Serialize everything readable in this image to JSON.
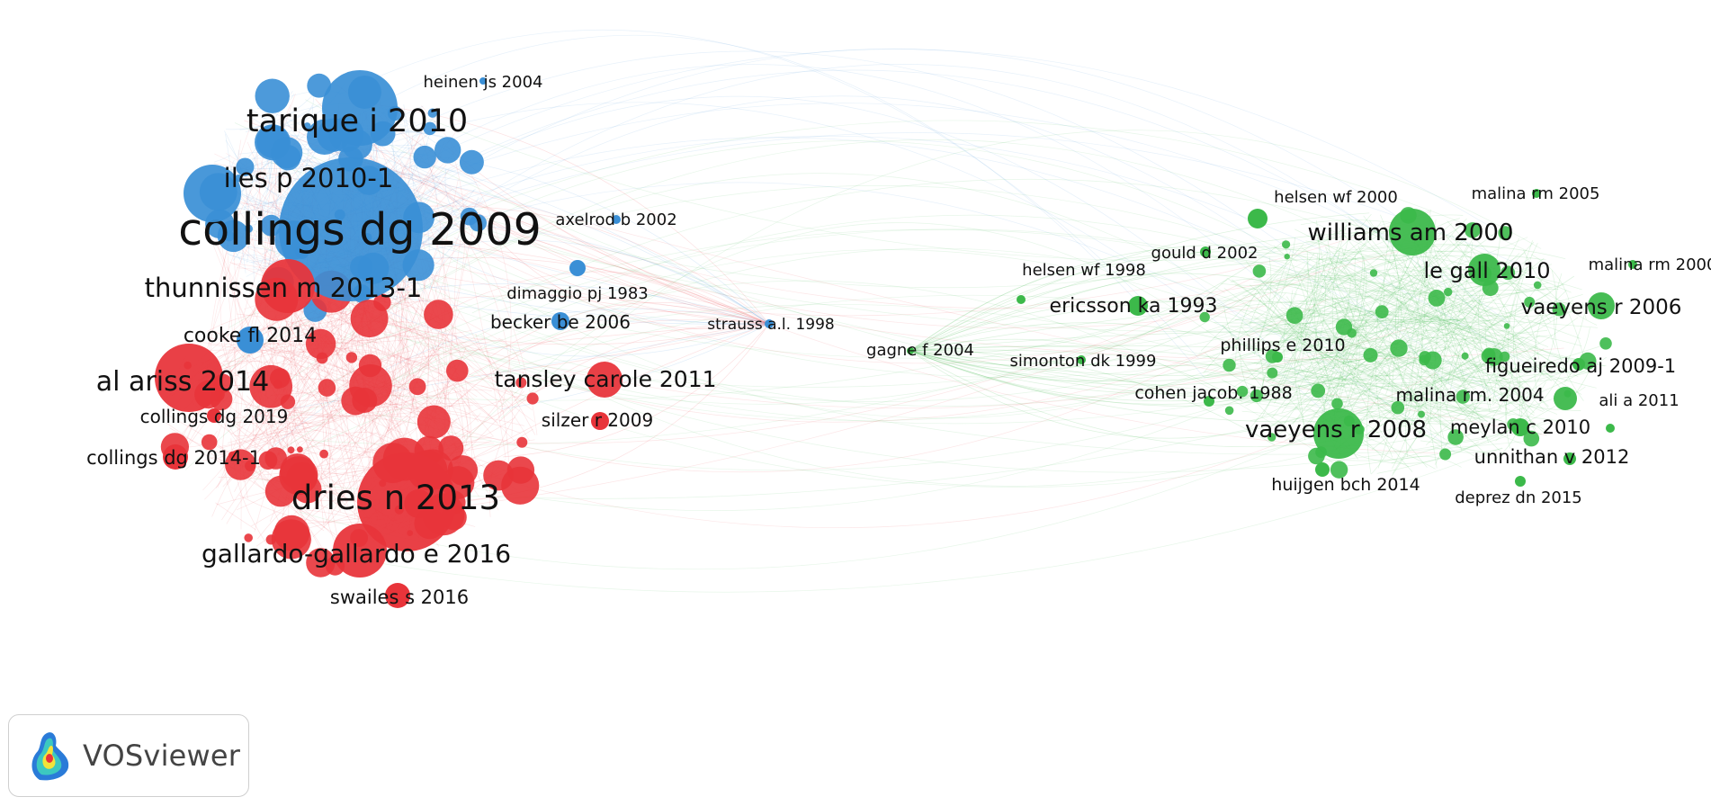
{
  "colors": {
    "red": "#e8343a",
    "blue": "#3a8fd6",
    "green": "#3cb94a"
  },
  "logo": {
    "text": "VOSviewer",
    "icon": "vosviewer-logo-icon"
  },
  "nodes": [
    {
      "label": "collings dg 2009",
      "cluster": "blue"
    },
    {
      "label": "tarique i 2010",
      "cluster": "blue"
    },
    {
      "label": "iles p 2010-1",
      "cluster": "blue"
    },
    {
      "label": "heinen js 2004",
      "cluster": "blue"
    },
    {
      "label": "axelrod b 2002",
      "cluster": "blue"
    },
    {
      "label": "dimaggio pj 1983",
      "cluster": "blue"
    },
    {
      "label": "becker be 2006",
      "cluster": "blue"
    },
    {
      "label": "strauss a.l. 1998",
      "cluster": "blue"
    },
    {
      "label": "cooke fl 2014",
      "cluster": "blue"
    },
    {
      "label": "thunnissen m 2013-1",
      "cluster": "red"
    },
    {
      "label": "al ariss 2014",
      "cluster": "red"
    },
    {
      "label": "collings dg 2019",
      "cluster": "red"
    },
    {
      "label": "collings dg 2014-1",
      "cluster": "red"
    },
    {
      "label": "tansley carole 2011",
      "cluster": "red"
    },
    {
      "label": "silzer r 2009",
      "cluster": "red"
    },
    {
      "label": "dries n 2013",
      "cluster": "red"
    },
    {
      "label": "gallardo-gallardo e 2016",
      "cluster": "red"
    },
    {
      "label": "swailes s 2016",
      "cluster": "red"
    },
    {
      "label": "gagne f 2004",
      "cluster": "green"
    },
    {
      "label": "helsen wf 1998",
      "cluster": "green"
    },
    {
      "label": "simonton dk 1999",
      "cluster": "green"
    },
    {
      "label": "ericsson ka 1993",
      "cluster": "green"
    },
    {
      "label": "gould d 2002",
      "cluster": "green"
    },
    {
      "label": "helsen wf 2000",
      "cluster": "green"
    },
    {
      "label": "williams am 2000",
      "cluster": "green"
    },
    {
      "label": "malina rm 2005",
      "cluster": "green"
    },
    {
      "label": "malina rm 2000",
      "cluster": "green"
    },
    {
      "label": "le gall 2010",
      "cluster": "green"
    },
    {
      "label": "vaeyens r 2006",
      "cluster": "green"
    },
    {
      "label": "phillips e 2010",
      "cluster": "green"
    },
    {
      "label": "figueiredo aj 2009-1",
      "cluster": "green"
    },
    {
      "label": "cohen jacob. 1988",
      "cluster": "green"
    },
    {
      "label": "malina rm. 2004",
      "cluster": "green"
    },
    {
      "label": "ali a 2011",
      "cluster": "green"
    },
    {
      "label": "meylan c 2010",
      "cluster": "green"
    },
    {
      "label": "vaeyens r 2008",
      "cluster": "green"
    },
    {
      "label": "unnithan v 2012",
      "cluster": "green"
    },
    {
      "label": "huijgen bch 2014",
      "cluster": "green"
    },
    {
      "label": "deprez dn 2015",
      "cluster": "green"
    }
  ]
}
